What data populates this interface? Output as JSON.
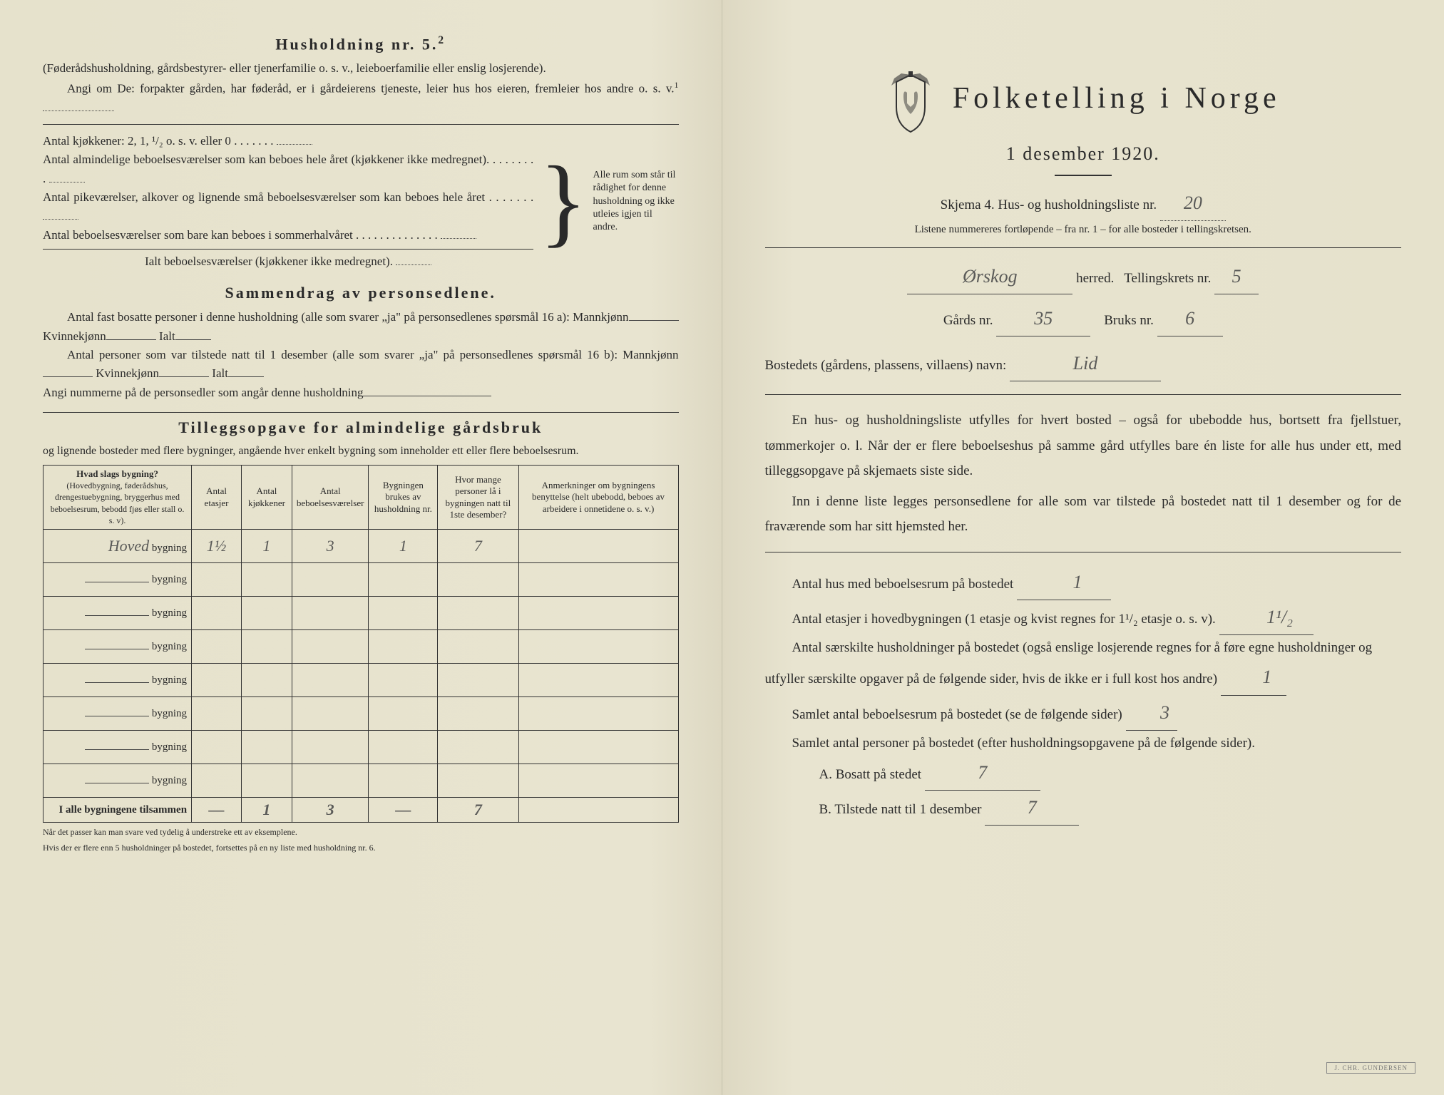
{
  "colors": {
    "paper": "#e8e4d0",
    "ink": "#2a2a2a",
    "pencil": "#5a5a58",
    "border": "#333333"
  },
  "left": {
    "household_heading": "Husholdning nr. 5.",
    "household_sup": "2",
    "household_sub": "(Føderådshusholdning, gårdsbestyrer- eller tjenerfamilie o. s. v., leieboerfamilie eller enslig losjerende).",
    "angi_line": "Angi om De: forpakter gården, har føderåd, er i gårdeierens tjeneste, leier hus hos eieren, fremleier hos andre o. s. v.",
    "angi_sup": "1",
    "kitchens_label": "Antal kjøkkener: 2, 1, ¹/₂ o. s. v. eller 0",
    "rooms_line1": "Antal almindelige beboelsesværelser som kan beboes hele året (kjøkkener ikke medregnet).",
    "rooms_line2": "Antal pikeværelser, alkover og lignende små beboelsesværelser som kan beboes hele året",
    "rooms_line3": "Antal beboelsesværelser som bare kan beboes i sommerhalvåret",
    "rooms_total": "Ialt beboelsesværelser (kjøkkener ikke medregnet).",
    "brace_text": "Alle rum som står til rådighet for denne husholdning og ikke utleies igjen til andre.",
    "summary_heading": "Sammendrag av personsedlene.",
    "summary_l1a": "Antal fast bosatte personer i denne husholdning (alle som svarer „ja\" på personsedlenes spørsmål 16 a): Mannkjønn",
    "summary_kvinne": "Kvinnekjønn",
    "summary_ialt": "Ialt",
    "summary_l2a": "Antal personer som var tilstede natt til 1 desember (alle som svarer „ja\" på personsedlenes spørsmål 16 b): Mannkjønn",
    "summary_l3": "Angi nummerne på de personsedler som angår denne husholdning",
    "tillegg_heading": "Tilleggsopgave for almindelige gårdsbruk",
    "tillegg_sub": "og lignende bosteder med flere bygninger, angående hver enkelt bygning som inneholder ett eller flere beboelsesrum.",
    "table": {
      "headers": {
        "col1": "Hvad slags bygning?",
        "col1_sub": "(Hovedbygning, føderådshus, drengestuebygning, bryggerhus med beboelsesrum, bebodd fjøs eller stall o. s. v).",
        "col2": "Antal etasjer",
        "col3": "Antal kjøkkener",
        "col4": "Antal beboelsesværelser",
        "col5": "Bygningen brukes av husholdning nr.",
        "col6": "Hvor mange personer lå i bygningen natt til 1ste desember?",
        "col7": "Anmerkninger om bygningens benyttelse (helt ubebodd, beboes av arbeidere i onnetidene o. s. v.)"
      },
      "row_suffix": "bygning",
      "rows": [
        {
          "name": "Hoved",
          "etasjer": "1½",
          "kjokken": "1",
          "vaerelser": "3",
          "hushold": "1",
          "personer": "7",
          "anm": ""
        },
        {
          "name": "",
          "etasjer": "",
          "kjokken": "",
          "vaerelser": "",
          "hushold": "",
          "personer": "",
          "anm": ""
        },
        {
          "name": "",
          "etasjer": "",
          "kjokken": "",
          "vaerelser": "",
          "hushold": "",
          "personer": "",
          "anm": ""
        },
        {
          "name": "",
          "etasjer": "",
          "kjokken": "",
          "vaerelser": "",
          "hushold": "",
          "personer": "",
          "anm": ""
        },
        {
          "name": "",
          "etasjer": "",
          "kjokken": "",
          "vaerelser": "",
          "hushold": "",
          "personer": "",
          "anm": ""
        },
        {
          "name": "",
          "etasjer": "",
          "kjokken": "",
          "vaerelser": "",
          "hushold": "",
          "personer": "",
          "anm": ""
        },
        {
          "name": "",
          "etasjer": "",
          "kjokken": "",
          "vaerelser": "",
          "hushold": "",
          "personer": "",
          "anm": ""
        },
        {
          "name": "",
          "etasjer": "",
          "kjokken": "",
          "vaerelser": "",
          "hushold": "",
          "personer": "",
          "anm": ""
        }
      ],
      "totals_label": "I alle bygningene tilsammen",
      "totals": {
        "etasjer": "—",
        "kjokken": "1",
        "vaerelser": "3",
        "hushold": "—",
        "personer": "7",
        "anm": ""
      }
    },
    "footnote1": "Når det passer kan man svare ved tydelig å understreke ett av eksemplene.",
    "footnote2": "Hvis der er flere enn 5 husholdninger på bostedet, fortsettes på en ny liste med husholdning nr. 6."
  },
  "right": {
    "title": "Folketelling i Norge",
    "subtitle": "1 desember 1920.",
    "skjema_line": "Skjema 4. Hus- og husholdningsliste nr.",
    "skjema_nr": "20",
    "listene_line": "Listene nummereres fortløpende – fra nr. 1 – for alle bosteder i tellingskretsen.",
    "herred_value": "Ørskog",
    "herred_label": "herred.",
    "krets_label": "Tellingskrets nr.",
    "krets_nr": "5",
    "gards_label": "Gårds nr.",
    "gards_nr": "35",
    "bruks_label": "Bruks nr.",
    "bruks_nr": "6",
    "bosted_label": "Bostedets (gårdens, plassens, villaens) navn:",
    "bosted_value": "Lid",
    "para1": "En hus- og husholdningsliste utfylles for hvert bosted – også for ubebodde hus, bortsett fra fjellstuer, tømmerkojer o. l. Når der er flere beboelseshus på samme gård utfylles bare én liste for alle hus under ett, med tilleggsopgave på skjemaets siste side.",
    "para2": "Inn i denne liste legges personsedlene for alle som var tilstede på bostedet natt til 1 desember og for de fraværende som har sitt hjemsted her.",
    "q_hus": "Antal hus med beboelsesrum på bostedet",
    "a_hus": "1",
    "q_etasjer_a": "Antal etasjer i hovedbygningen (1 etasje og kvist regnes for 1¹/₂ etasje o. s. v).",
    "a_etasjer": "1¹/₂",
    "q_hushold": "Antal særskilte husholdninger på bostedet (også enslige losjerende regnes for å føre egne husholdninger og utfyller særskilte opgaver på de følgende sider, hvis de ikke er i full kost hos andre)",
    "a_hushold": "1",
    "q_rum": "Samlet antal beboelsesrum på bostedet (se de følgende sider)",
    "a_rum": "3",
    "q_personer": "Samlet antal personer på bostedet (efter husholdningsopgavene på de følgende sider).",
    "q_A": "A. Bosatt på stedet",
    "a_A": "7",
    "q_B": "B. Tilstede natt til 1 desember",
    "a_B": "7",
    "stamp": "J. CHR. GUNDERSEN"
  }
}
